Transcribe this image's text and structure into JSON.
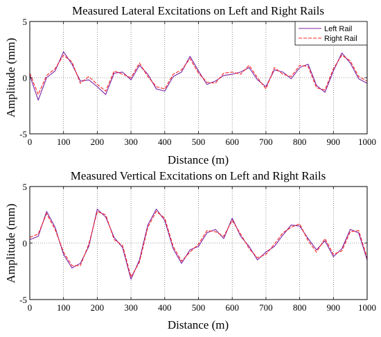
{
  "chart_data": [
    {
      "type": "line",
      "title": "Measured Lateral Excitations on Left and Right Rails",
      "xlabel": "Distance (m)",
      "ylabel": "Amplitude (mm)",
      "xlim": [
        0,
        1000
      ],
      "ylim": [
        -5,
        5
      ],
      "xticks": [
        0,
        100,
        200,
        300,
        400,
        500,
        600,
        700,
        800,
        900,
        1000
      ],
      "yticks": [
        -5,
        0,
        5
      ],
      "grid": "dotted",
      "legend": "top-right",
      "x": [
        0,
        25,
        50,
        75,
        100,
        125,
        150,
        175,
        200,
        225,
        250,
        275,
        300,
        325,
        350,
        375,
        400,
        425,
        450,
        475,
        500,
        525,
        550,
        575,
        600,
        625,
        650,
        675,
        700,
        725,
        750,
        775,
        800,
        825,
        850,
        875,
        900,
        925,
        950,
        975,
        1000
      ],
      "series": [
        {
          "name": "Left Rail",
          "color": "#7a1fa2",
          "values": [
            0.2,
            -2.0,
            0.0,
            0.6,
            2.3,
            1.2,
            -0.3,
            -0.2,
            -0.8,
            -1.5,
            0.4,
            0.5,
            -0.2,
            1.1,
            0.3,
            -1.0,
            -1.2,
            0.1,
            0.5,
            1.9,
            0.6,
            -0.6,
            -0.3,
            0.2,
            0.3,
            0.5,
            0.9,
            -0.2,
            -0.8,
            0.7,
            0.5,
            -0.1,
            0.9,
            1.2,
            -0.7,
            -1.3,
            0.6,
            2.2,
            1.3,
            -0.1,
            -0.5
          ]
        },
        {
          "name": "Right Rail",
          "color": "#ff2020",
          "values": [
            0.4,
            -1.5,
            0.2,
            0.8,
            2.0,
            1.4,
            -0.5,
            0.1,
            -0.6,
            -1.2,
            0.6,
            0.3,
            0.0,
            1.3,
            0.1,
            -0.8,
            -1.0,
            0.3,
            0.7,
            1.7,
            0.4,
            -0.4,
            -0.5,
            0.4,
            0.5,
            0.3,
            1.1,
            0.0,
            -1.0,
            0.9,
            0.3,
            0.1,
            1.1,
            1.0,
            -0.9,
            -1.1,
            0.8,
            2.0,
            1.5,
            0.1,
            -0.3
          ]
        }
      ]
    },
    {
      "type": "line",
      "title": "Measured Vertical Excitations on Left and Right Rails",
      "xlabel": "Distance (m)",
      "ylabel": "Amplitude (mm)",
      "xlim": [
        0,
        1000
      ],
      "ylim": [
        -5,
        5
      ],
      "xticks": [
        0,
        100,
        200,
        300,
        400,
        500,
        600,
        700,
        800,
        900,
        1000
      ],
      "yticks": [
        -5,
        0,
        5
      ],
      "grid": "dotted",
      "x": [
        0,
        25,
        50,
        75,
        100,
        125,
        150,
        175,
        200,
        225,
        250,
        275,
        300,
        325,
        350,
        375,
        400,
        425,
        450,
        475,
        500,
        525,
        550,
        575,
        600,
        625,
        650,
        675,
        700,
        725,
        750,
        775,
        800,
        825,
        850,
        875,
        900,
        925,
        950,
        975,
        1000
      ],
      "series": [
        {
          "name": "Left Rail",
          "color": "#7a1fa2",
          "values": [
            0.3,
            0.6,
            2.8,
            1.4,
            -1.0,
            -2.2,
            -1.8,
            -0.3,
            3.0,
            2.3,
            0.5,
            -0.4,
            -3.2,
            -1.5,
            1.6,
            3.0,
            2.0,
            -0.5,
            -1.8,
            -0.6,
            -0.3,
            0.9,
            1.2,
            0.4,
            2.2,
            0.6,
            -0.3,
            -1.5,
            -0.8,
            -0.3,
            0.7,
            1.6,
            1.5,
            0.4,
            -0.6,
            0.2,
            -1.2,
            -0.5,
            1.2,
            0.9,
            -1.5
          ]
        },
        {
          "name": "Right Rail",
          "color": "#ff2020",
          "values": [
            0.5,
            0.8,
            2.6,
            1.2,
            -0.8,
            -2.0,
            -2.0,
            -0.1,
            2.8,
            2.5,
            0.3,
            -0.2,
            -3.0,
            -1.7,
            1.4,
            2.8,
            2.2,
            -0.3,
            -1.6,
            -0.8,
            -0.1,
            1.1,
            1.0,
            0.6,
            2.0,
            0.8,
            -0.5,
            -1.3,
            -1.0,
            -0.1,
            0.9,
            1.4,
            1.7,
            0.2,
            -0.8,
            0.4,
            -1.0,
            -0.7,
            1.0,
            1.1,
            -1.3
          ]
        }
      ]
    }
  ]
}
